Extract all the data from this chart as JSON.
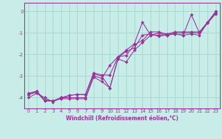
{
  "xlabel": "Windchill (Refroidissement éolien,°C)",
  "ylabel": "",
  "bg_color": "#c8ede8",
  "grid_color": "#a8d8d4",
  "line_color": "#993399",
  "spine_color": "#993399",
  "xlim": [
    -0.5,
    23.5
  ],
  "ylim": [
    -4.5,
    0.4
  ],
  "yticks": [
    0,
    -1,
    -2,
    -3,
    -4
  ],
  "xticks": [
    0,
    1,
    2,
    3,
    4,
    5,
    6,
    7,
    8,
    9,
    10,
    11,
    12,
    13,
    14,
    15,
    16,
    17,
    18,
    19,
    20,
    21,
    22,
    23
  ],
  "lines": [
    [
      -4.0,
      -3.8,
      -4.0,
      -4.2,
      -4.0,
      -4.0,
      -4.0,
      -4.0,
      -3.0,
      -3.1,
      -2.5,
      -2.1,
      -1.8,
      -1.5,
      -0.5,
      -1.1,
      -1.1,
      -1.05,
      -1.05,
      -1.1,
      -0.15,
      -1.0,
      -0.5,
      0.0
    ],
    [
      -3.8,
      -3.7,
      -4.15,
      -4.15,
      -4.05,
      -4.05,
      -4.05,
      -4.05,
      -3.05,
      -3.25,
      -3.55,
      -2.15,
      -1.85,
      -1.7,
      -1.1,
      -1.05,
      -1.15,
      -1.1,
      -1.05,
      -1.1,
      -1.05,
      -1.1,
      -0.5,
      -0.1
    ],
    [
      -3.85,
      -3.75,
      -4.15,
      -4.15,
      -4.05,
      -3.9,
      -3.85,
      -3.85,
      -2.9,
      -3.0,
      -3.55,
      -2.2,
      -2.35,
      -1.8,
      -1.45,
      -1.1,
      -1.0,
      -1.1,
      -1.0,
      -1.0,
      -1.0,
      -1.0,
      -0.55,
      -0.1
    ],
    [
      -3.85,
      -3.7,
      -4.1,
      -4.15,
      -4.0,
      -3.9,
      -3.85,
      -3.85,
      -2.85,
      -2.95,
      -2.95,
      -2.1,
      -2.05,
      -1.55,
      -1.35,
      -0.95,
      -0.95,
      -1.05,
      -0.95,
      -0.95,
      -0.95,
      -0.95,
      -0.5,
      -0.05
    ]
  ],
  "xlabel_fontsize": 5.5,
  "tick_fontsize": 5.0,
  "marker": "D",
  "markersize": 2.0,
  "linewidth": 0.8
}
